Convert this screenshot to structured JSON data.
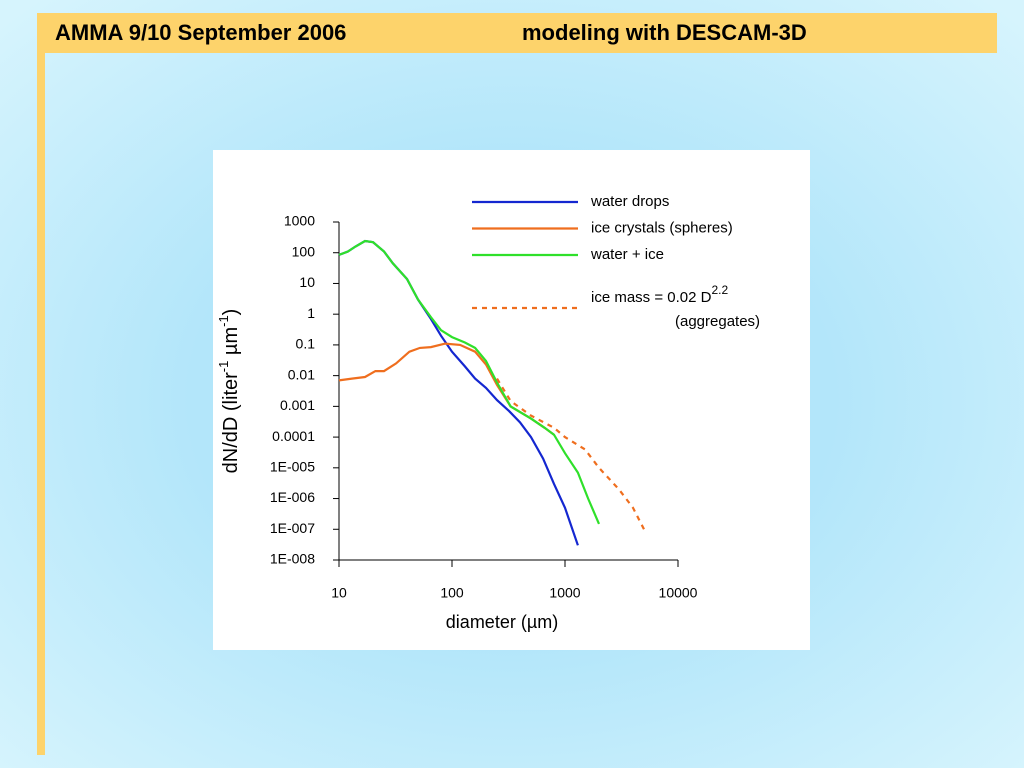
{
  "slide": {
    "title_left": "AMMA 9/10 September 2006",
    "title_right": "modeling with DESCAM-3D"
  },
  "chart_data": {
    "type": "line",
    "xlog": true,
    "ylog": true,
    "xlabel": "diameter (µm)",
    "ylabel": [
      "dN/dD (liter",
      "-1",
      " µm",
      "-1",
      ")"
    ],
    "xlim": [
      10,
      10000
    ],
    "xticks": [
      10,
      100,
      1000,
      10000
    ],
    "ylim": [
      1e-08,
      1000
    ],
    "yticks": [
      1000,
      100,
      10,
      1,
      0.1,
      0.01,
      0.001,
      0.0001,
      {
        "value": 1e-05,
        "label": "1E-005"
      },
      {
        "value": 1e-06,
        "label": "1E-006"
      },
      {
        "value": 1e-07,
        "label": "1E-007"
      },
      {
        "value": 1e-08,
        "label": "1E-008"
      }
    ],
    "series": [
      {
        "name": "water drops",
        "color": "#1427d0",
        "x": [
          10,
          12,
          14,
          17,
          20,
          25,
          30,
          40,
          50,
          65,
          80,
          100,
          130,
          160,
          200,
          250,
          320,
          400,
          500,
          640,
          800,
          1000,
          1300
        ],
        "values": [
          85,
          110,
          160,
          240,
          220,
          110,
          45,
          14,
          3,
          0.7,
          0.2,
          0.06,
          0.02,
          0.008,
          0.004,
          0.0016,
          0.0007,
          0.0003,
          0.0001,
          2e-05,
          3e-06,
          5e-07,
          3e-08
        ]
      },
      {
        "name": "ice crystals (spheres)",
        "color": "#ef6e1e",
        "x": [
          10,
          13,
          17,
          21,
          25,
          32,
          42,
          52,
          65,
          87,
          118,
          160,
          200,
          250,
          330,
          500,
          660,
          800
        ],
        "values": [
          0.007,
          0.008,
          0.009,
          0.014,
          0.014,
          0.025,
          0.06,
          0.08,
          0.085,
          0.11,
          0.1,
          0.06,
          0.023,
          0.005,
          0.001,
          0.0004,
          0.0002,
          0.00012
        ]
      },
      {
        "name": "water + ice",
        "color": "#2fe02a",
        "x": [
          10,
          12,
          14,
          17,
          20,
          25,
          30,
          40,
          50,
          65,
          80,
          100,
          130,
          160,
          200,
          250,
          330,
          500,
          660,
          800,
          1000,
          1300,
          1600,
          2000
        ],
        "values": [
          85,
          110,
          160,
          240,
          220,
          110,
          45,
          14,
          3,
          0.8,
          0.3,
          0.18,
          0.12,
          0.08,
          0.03,
          0.006,
          0.001,
          0.0004,
          0.0002,
          0.00012,
          3e-05,
          7e-06,
          1e-06,
          1.5e-07
        ]
      },
      {
        "name": "ice mass = 0.02 D",
        "name_sup": "2.2",
        "name_note": "(aggregates)",
        "color": "#ef6e1e",
        "dash": true,
        "x": [
          250,
          330,
          500,
          800,
          1000,
          1500,
          2000,
          3000,
          4000,
          5000
        ],
        "values": [
          0.008,
          0.0015,
          0.0005,
          0.0002,
          0.0001,
          4e-05,
          1e-05,
          2e-06,
          5e-07,
          1e-07
        ]
      }
    ]
  }
}
